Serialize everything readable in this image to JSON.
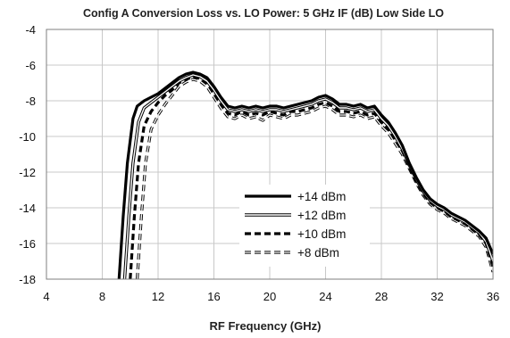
{
  "chart_data": {
    "type": "line",
    "title": "Config A Conversion Loss vs. LO Power: 5 GHz IF (dB) Low Side LO",
    "xlabel": "RF Frequency (GHz)",
    "ylabel": "",
    "xlim": [
      4,
      36
    ],
    "ylim": [
      -18,
      -4
    ],
    "xticks": [
      4,
      8,
      12,
      16,
      20,
      24,
      28,
      32,
      36
    ],
    "yticks": [
      -4,
      -6,
      -8,
      -10,
      -12,
      -14,
      -16,
      -18
    ],
    "grid": true,
    "legend_position": "center-right",
    "series": [
      {
        "name": "+14 dBm",
        "style": "solid-thick",
        "points": [
          [
            9.2,
            -18
          ],
          [
            9.5,
            -14.5
          ],
          [
            9.8,
            -11.5
          ],
          [
            10.2,
            -9.0
          ],
          [
            10.5,
            -8.3
          ],
          [
            11,
            -8.0
          ],
          [
            11.5,
            -7.8
          ],
          [
            12,
            -7.6
          ],
          [
            12.5,
            -7.3
          ],
          [
            13,
            -7.0
          ],
          [
            13.5,
            -6.7
          ],
          [
            14,
            -6.5
          ],
          [
            14.5,
            -6.4
          ],
          [
            15,
            -6.5
          ],
          [
            15.5,
            -6.7
          ],
          [
            16,
            -7.2
          ],
          [
            16.5,
            -7.8
          ],
          [
            17,
            -8.3
          ],
          [
            17.5,
            -8.4
          ],
          [
            18,
            -8.3
          ],
          [
            18.5,
            -8.4
          ],
          [
            19,
            -8.3
          ],
          [
            19.5,
            -8.4
          ],
          [
            20,
            -8.3
          ],
          [
            20.5,
            -8.3
          ],
          [
            21,
            -8.4
          ],
          [
            21.5,
            -8.3
          ],
          [
            22,
            -8.2
          ],
          [
            22.5,
            -8.1
          ],
          [
            23,
            -8.0
          ],
          [
            23.5,
            -7.8
          ],
          [
            24,
            -7.7
          ],
          [
            24.5,
            -7.9
          ],
          [
            25,
            -8.2
          ],
          [
            25.5,
            -8.2
          ],
          [
            26,
            -8.3
          ],
          [
            26.5,
            -8.2
          ],
          [
            27,
            -8.4
          ],
          [
            27.5,
            -8.3
          ],
          [
            28,
            -8.8
          ],
          [
            28.5,
            -9.2
          ],
          [
            29,
            -9.8
          ],
          [
            29.5,
            -10.5
          ],
          [
            30,
            -11.5
          ],
          [
            30.5,
            -12.3
          ],
          [
            31,
            -13.0
          ],
          [
            31.5,
            -13.5
          ],
          [
            32,
            -13.8
          ],
          [
            32.5,
            -14.0
          ],
          [
            33,
            -14.3
          ],
          [
            33.5,
            -14.5
          ],
          [
            34,
            -14.7
          ],
          [
            34.5,
            -15.0
          ],
          [
            35,
            -15.3
          ],
          [
            35.5,
            -15.7
          ],
          [
            36,
            -16.6
          ]
        ]
      },
      {
        "name": "+12 dBm",
        "style": "double",
        "points": [
          [
            9.6,
            -18
          ],
          [
            9.9,
            -14.5
          ],
          [
            10.2,
            -11.5
          ],
          [
            10.6,
            -9.2
          ],
          [
            11,
            -8.4
          ],
          [
            11.5,
            -8.1
          ],
          [
            12,
            -7.8
          ],
          [
            12.5,
            -7.5
          ],
          [
            13,
            -7.2
          ],
          [
            13.5,
            -6.9
          ],
          [
            14,
            -6.7
          ],
          [
            14.5,
            -6.55
          ],
          [
            15,
            -6.65
          ],
          [
            15.5,
            -6.9
          ],
          [
            16,
            -7.4
          ],
          [
            16.5,
            -8.0
          ],
          [
            17,
            -8.5
          ],
          [
            17.5,
            -8.6
          ],
          [
            18,
            -8.5
          ],
          [
            18.5,
            -8.6
          ],
          [
            19,
            -8.5
          ],
          [
            19.5,
            -8.6
          ],
          [
            20,
            -8.5
          ],
          [
            20.5,
            -8.5
          ],
          [
            21,
            -8.6
          ],
          [
            21.5,
            -8.5
          ],
          [
            22,
            -8.4
          ],
          [
            22.5,
            -8.3
          ],
          [
            23,
            -8.2
          ],
          [
            23.5,
            -8.0
          ],
          [
            24,
            -7.9
          ],
          [
            24.5,
            -8.1
          ],
          [
            25,
            -8.4
          ],
          [
            25.5,
            -8.4
          ],
          [
            26,
            -8.5
          ],
          [
            26.5,
            -8.4
          ],
          [
            27,
            -8.6
          ],
          [
            27.5,
            -8.5
          ],
          [
            28,
            -9.0
          ],
          [
            28.5,
            -9.4
          ],
          [
            29,
            -10.0
          ],
          [
            29.5,
            -10.7
          ],
          [
            30,
            -11.6
          ],
          [
            30.5,
            -12.4
          ],
          [
            31,
            -13.1
          ],
          [
            31.5,
            -13.6
          ],
          [
            32,
            -13.9
          ],
          [
            32.5,
            -14.1
          ],
          [
            33,
            -14.4
          ],
          [
            33.5,
            -14.6
          ],
          [
            34,
            -14.8
          ],
          [
            34.5,
            -15.1
          ],
          [
            35,
            -15.4
          ],
          [
            35.5,
            -15.9
          ],
          [
            36,
            -17.0
          ]
        ]
      },
      {
        "name": "+10 dBm",
        "style": "dashed-thick",
        "points": [
          [
            10.0,
            -18
          ],
          [
            10.3,
            -14.5
          ],
          [
            10.6,
            -11.5
          ],
          [
            11.0,
            -9.4
          ],
          [
            11.5,
            -8.6
          ],
          [
            12,
            -8.1
          ],
          [
            12.5,
            -7.7
          ],
          [
            13,
            -7.4
          ],
          [
            13.5,
            -7.0
          ],
          [
            14,
            -6.8
          ],
          [
            14.5,
            -6.65
          ],
          [
            15,
            -6.75
          ],
          [
            15.5,
            -7.0
          ],
          [
            16,
            -7.6
          ],
          [
            16.5,
            -8.2
          ],
          [
            17,
            -8.7
          ],
          [
            17.5,
            -8.8
          ],
          [
            18,
            -8.6
          ],
          [
            18.5,
            -8.8
          ],
          [
            19,
            -8.7
          ],
          [
            19.5,
            -8.8
          ],
          [
            20,
            -8.6
          ],
          [
            20.5,
            -8.7
          ],
          [
            21,
            -8.8
          ],
          [
            21.5,
            -8.6
          ],
          [
            22,
            -8.6
          ],
          [
            22.5,
            -8.5
          ],
          [
            23,
            -8.4
          ],
          [
            23.5,
            -8.2
          ],
          [
            24,
            -8.1
          ],
          [
            24.5,
            -8.3
          ],
          [
            25,
            -8.6
          ],
          [
            25.5,
            -8.6
          ],
          [
            26,
            -8.7
          ],
          [
            26.5,
            -8.6
          ],
          [
            27,
            -8.8
          ],
          [
            27.5,
            -8.7
          ],
          [
            28,
            -9.2
          ],
          [
            28.5,
            -9.6
          ],
          [
            29,
            -10.2
          ],
          [
            29.5,
            -10.8
          ],
          [
            30,
            -11.7
          ],
          [
            30.5,
            -12.5
          ],
          [
            31,
            -13.2
          ],
          [
            31.5,
            -13.7
          ],
          [
            32,
            -14.0
          ],
          [
            32.5,
            -14.2
          ],
          [
            33,
            -14.5
          ],
          [
            33.5,
            -14.7
          ],
          [
            34,
            -14.9
          ],
          [
            34.5,
            -15.2
          ],
          [
            35,
            -15.5
          ],
          [
            35.5,
            -16.0
          ],
          [
            36,
            -17.3
          ]
        ]
      },
      {
        "name": "+8 dBm",
        "style": "dashed-double",
        "points": [
          [
            10.5,
            -18
          ],
          [
            10.8,
            -14.5
          ],
          [
            11.1,
            -11.5
          ],
          [
            11.5,
            -9.6
          ],
          [
            12,
            -8.8
          ],
          [
            12.5,
            -8.2
          ],
          [
            13,
            -7.7
          ],
          [
            13.5,
            -7.2
          ],
          [
            14,
            -6.95
          ],
          [
            14.5,
            -6.8
          ],
          [
            15,
            -6.9
          ],
          [
            15.5,
            -7.2
          ],
          [
            16,
            -7.8
          ],
          [
            16.5,
            -8.4
          ],
          [
            17,
            -8.9
          ],
          [
            17.5,
            -9.0
          ],
          [
            18,
            -8.8
          ],
          [
            18.5,
            -9.0
          ],
          [
            19,
            -8.9
          ],
          [
            19.5,
            -9.1
          ],
          [
            20,
            -8.8
          ],
          [
            20.5,
            -8.9
          ],
          [
            21,
            -9.0
          ],
          [
            21.5,
            -8.8
          ],
          [
            22,
            -8.8
          ],
          [
            22.5,
            -8.7
          ],
          [
            23,
            -8.6
          ],
          [
            23.5,
            -8.4
          ],
          [
            24,
            -8.3
          ],
          [
            24.5,
            -8.5
          ],
          [
            25,
            -8.8
          ],
          [
            25.5,
            -8.8
          ],
          [
            26,
            -8.9
          ],
          [
            26.5,
            -8.8
          ],
          [
            27,
            -9.0
          ],
          [
            27.5,
            -8.9
          ],
          [
            28,
            -9.4
          ],
          [
            28.5,
            -9.8
          ],
          [
            29,
            -10.4
          ],
          [
            29.5,
            -11.0
          ],
          [
            30,
            -11.8
          ],
          [
            30.5,
            -12.6
          ],
          [
            31,
            -13.3
          ],
          [
            31.5,
            -13.8
          ],
          [
            32,
            -14.1
          ],
          [
            32.5,
            -14.3
          ],
          [
            33,
            -14.6
          ],
          [
            33.5,
            -14.8
          ],
          [
            34,
            -15.0
          ],
          [
            34.5,
            -15.3
          ],
          [
            35,
            -15.6
          ],
          [
            35.5,
            -16.2
          ],
          [
            36,
            -17.6
          ]
        ]
      }
    ]
  }
}
